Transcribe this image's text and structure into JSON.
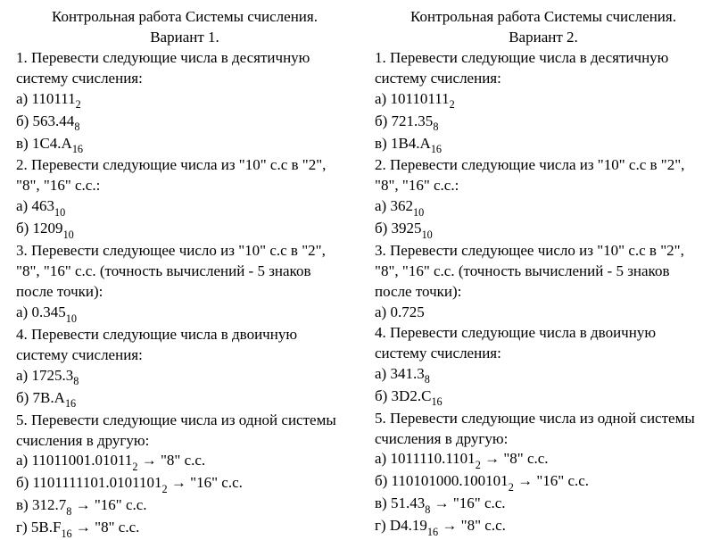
{
  "columns": [
    {
      "title1": "Контрольная работа Системы счисления.",
      "title2": "Вариант 1.",
      "lines": [
        "1. Перевести следующие числа в десятичную",
        "систему счисления:",
        {
          "text": "а) 110111",
          "sub": "2"
        },
        {
          "text": "б) 563.44",
          "sub": "8"
        },
        {
          "text": "в) 1C4.A",
          "sub": "16"
        },
        "2. Перевести следующие числа из \"10\" с.с в \"2\",",
        "\"8\", \"16\" с.с.:",
        {
          "text": "а) 463",
          "sub": "10"
        },
        {
          "text": "б) 1209",
          "sub": "10"
        },
        "3. Перевести следующее число из \"10\" с.с в \"2\",",
        "\"8\", \"16\" с.с. (точность вычислений - 5 знаков",
        "после точки):",
        {
          "text": "а) 0.345",
          "sub": "10"
        },
        "4. Перевести следующие числа в двоичную",
        "систему счисления:",
        {
          "text": "а) 1725.3",
          "sub": "8"
        },
        {
          "text": "б) 7B.A",
          "sub": "16"
        },
        "5. Перевести следующие числа из одной системы",
        "счисления в другую:",
        {
          "text": "а) 11011001.01011",
          "sub": "2",
          "tail": " → \"8\" с.с."
        },
        {
          "text": "б) 1101111101.0101101",
          "sub": "2",
          "tail": " → \"16\" с.с."
        },
        {
          "text": "в) 312.7",
          "sub": "8",
          "tail": " → \"16\" с.с."
        },
        {
          "text": "г) 5B.F",
          "sub": "16",
          "tail": " → \"8\" с.с."
        }
      ]
    },
    {
      "title1": "Контрольная работа Системы счисления.",
      "title2": "Вариант 2.",
      "lines": [
        "1. Перевести следующие числа в десятичную",
        "систему счисления:",
        {
          "text": "а) 10110111",
          "sub": "2"
        },
        {
          "text": "б) 721.35",
          "sub": "8"
        },
        {
          "text": "в) 1B4.A",
          "sub": "16"
        },
        "2. Перевести следующие числа из \"10\" с.с в \"2\",",
        "\"8\", \"16\" с.с.:",
        {
          "text": "а) 362",
          "sub": "10"
        },
        {
          "text": "б) 3925",
          "sub": "10"
        },
        "3. Перевести следующее число из \"10\" с.с в \"2\",",
        "\"8\", \"16\" с.с. (точность вычислений - 5 знаков",
        "после точки):",
        "а) 0.725",
        "4. Перевести следующие числа в двоичную",
        "систему счисления:",
        {
          "text": "а) 341.3",
          "sub": "8"
        },
        {
          "text": "б) 3D2.C",
          "sub": "16"
        },
        "5. Перевести следующие числа из одной системы",
        "счисления в другую:",
        {
          "text": "а) 1011110.1101",
          "sub": "2",
          "tail": " → \"8\" с.с."
        },
        {
          "text": "б) 110101000.100101",
          "sub": "2",
          "tail": " → \"16\" с.с."
        },
        {
          "text": "в) 51.43",
          "sub": "8",
          "tail": " → \"16\" с.с."
        },
        {
          "text": "г) D4.19",
          "sub": "16",
          "tail": " → \"8\" с.с."
        }
      ]
    }
  ]
}
